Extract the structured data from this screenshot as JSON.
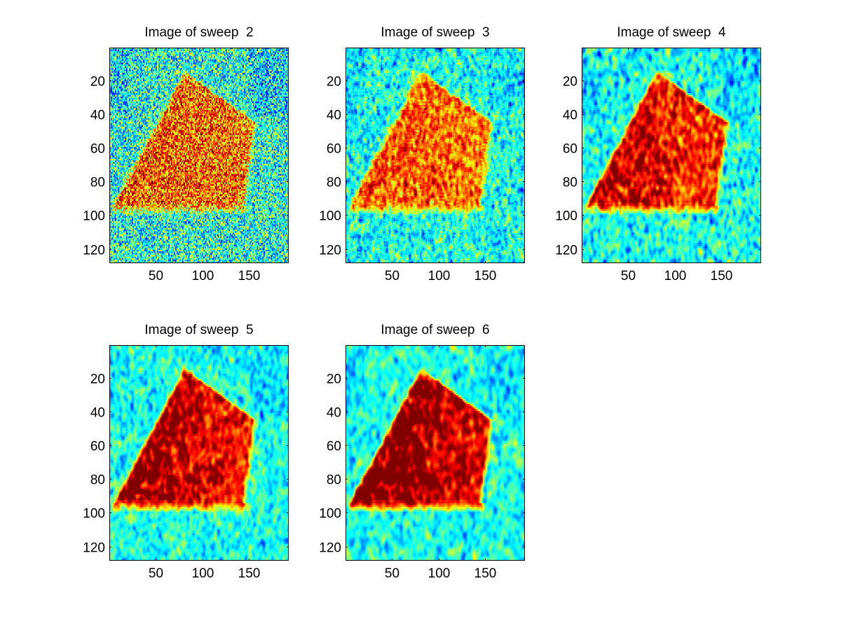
{
  "figure": {
    "background": "#ffffff",
    "colormap": "jet"
  },
  "chart_data": [
    {
      "type": "heatmap",
      "title": "Image of sweep  2",
      "xlabel": "",
      "ylabel": "",
      "xlim": [
        0.5,
        192.5
      ],
      "ylim": [
        128.5,
        0.5
      ],
      "y_reversed": true,
      "xticks": [
        50,
        100,
        150
      ],
      "xtick_labels": [
        "50",
        "100",
        "150"
      ],
      "yticks": [
        20,
        40,
        60,
        80,
        100,
        120
      ],
      "ytick_labels": [
        "20",
        "40",
        "60",
        "80",
        "100",
        "120"
      ],
      "grid": false,
      "image_size": [
        128,
        192
      ],
      "noise_level": 0.3,
      "signal_strength": 0.34,
      "red_boost": 0.08,
      "smoothness": 0.0
    },
    {
      "type": "heatmap",
      "title": "Image of sweep  3",
      "xlabel": "",
      "ylabel": "",
      "xlim": [
        0.5,
        192.5
      ],
      "ylim": [
        128.5,
        0.5
      ],
      "y_reversed": true,
      "xticks": [
        50,
        100,
        150
      ],
      "xtick_labels": [
        "50",
        "100",
        "150"
      ],
      "yticks": [
        20,
        40,
        60,
        80,
        100,
        120
      ],
      "ytick_labels": [
        "20",
        "40",
        "60",
        "80",
        "100",
        "120"
      ],
      "grid": false,
      "image_size": [
        128,
        192
      ],
      "noise_level": 0.24,
      "signal_strength": 0.34,
      "red_boost": 0.08,
      "smoothness": 0.25
    },
    {
      "type": "heatmap",
      "title": "Image of sweep  4",
      "xlabel": "",
      "ylabel": "",
      "xlim": [
        0.5,
        192.5
      ],
      "ylim": [
        128.5,
        0.5
      ],
      "y_reversed": true,
      "xticks": [
        50,
        100,
        150
      ],
      "xtick_labels": [
        "50",
        "100",
        "150"
      ],
      "yticks": [
        20,
        40,
        60,
        80,
        100,
        120
      ],
      "ytick_labels": [
        "20",
        "40",
        "60",
        "80",
        "100",
        "120"
      ],
      "grid": false,
      "image_size": [
        128,
        192
      ],
      "noise_level": 0.2,
      "signal_strength": 0.38,
      "red_boost": 0.2,
      "smoothness": 0.5
    },
    {
      "type": "heatmap",
      "title": "Image of sweep  5",
      "xlabel": "",
      "ylabel": "",
      "xlim": [
        0.5,
        192.5
      ],
      "ylim": [
        128.5,
        0.5
      ],
      "y_reversed": true,
      "xticks": [
        50,
        100,
        150
      ],
      "xtick_labels": [
        "50",
        "100",
        "150"
      ],
      "yticks": [
        20,
        40,
        60,
        80,
        100,
        120
      ],
      "ytick_labels": [
        "20",
        "40",
        "60",
        "80",
        "100",
        "120"
      ],
      "grid": false,
      "image_size": [
        128,
        192
      ],
      "noise_level": 0.17,
      "signal_strength": 0.4,
      "red_boost": 0.27,
      "smoothness": 0.7
    },
    {
      "type": "heatmap",
      "title": "Image of sweep  6",
      "xlabel": "",
      "ylabel": "",
      "xlim": [
        0.5,
        192.5
      ],
      "ylim": [
        128.5,
        0.5
      ],
      "y_reversed": true,
      "xticks": [
        50,
        100,
        150
      ],
      "xtick_labels": [
        "50",
        "100",
        "150"
      ],
      "yticks": [
        20,
        40,
        60,
        80,
        100,
        120
      ],
      "ytick_labels": [
        "20",
        "40",
        "60",
        "80",
        "100",
        "120"
      ],
      "grid": false,
      "image_size": [
        128,
        192
      ],
      "noise_level": 0.15,
      "signal_strength": 0.42,
      "red_boost": 0.32,
      "smoothness": 0.85
    }
  ]
}
